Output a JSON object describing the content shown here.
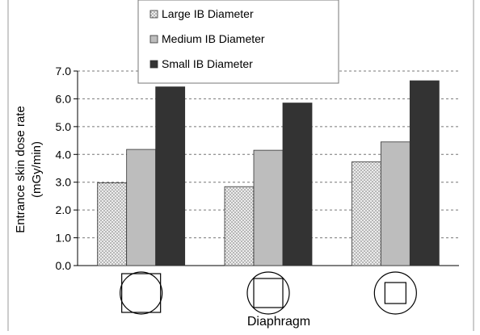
{
  "chart_data": {
    "type": "bar",
    "xlabel": "Diaphragm",
    "ylabel_line1": "Entrance skin dose rate",
    "ylabel_line2": "(mGy/min)",
    "ylim": [
      0,
      7
    ],
    "yticks": [
      "0.0",
      "1.0",
      "2.0",
      "3.0",
      "4.0",
      "5.0",
      "6.0",
      "7.0"
    ],
    "grid": "horizontal-dashed",
    "legend_position": "top-center",
    "categories": [
      "Circle inscribed in square",
      "Square inscribed in circle",
      "Small square in circle"
    ],
    "category_icons": [
      "circle-over-square-icon",
      "square-in-circle-icon",
      "small-square-in-circle-icon"
    ],
    "series": [
      {
        "name": "Large IB Diameter",
        "values": [
          2.98,
          2.84,
          3.73
        ],
        "color": "#d9d9d9",
        "pattern": "dotted"
      },
      {
        "name": "Medium IB Diameter",
        "values": [
          4.18,
          4.15,
          4.45
        ],
        "color": "#bdbdbd",
        "pattern": "solid"
      },
      {
        "name": "Small IB Diameter",
        "values": [
          6.43,
          5.85,
          6.65
        ],
        "color": "#333333",
        "pattern": "solid"
      }
    ]
  }
}
